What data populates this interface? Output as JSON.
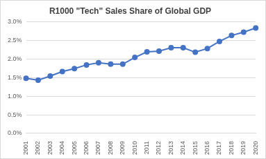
{
  "chart_data": {
    "type": "line",
    "title": "R1000 \"Tech\" Sales Share of Global GDP",
    "categories": [
      "2001",
      "2002",
      "2003",
      "2004",
      "2005",
      "2006",
      "2007",
      "2008",
      "2009",
      "2010",
      "2011",
      "2012",
      "2013",
      "2014",
      "2015",
      "2016",
      "2017",
      "2018",
      "2019",
      "2020"
    ],
    "values": [
      1.48,
      1.43,
      1.54,
      1.66,
      1.74,
      1.84,
      1.9,
      1.86,
      1.86,
      2.04,
      2.19,
      2.21,
      2.3,
      2.3,
      2.18,
      2.28,
      2.47,
      2.63,
      2.72,
      2.83
    ],
    "color": "#4472c4",
    "marker": "circle",
    "line_style": "solid",
    "ylim": [
      0,
      3
    ],
    "yticks": [
      {
        "value": 0,
        "label": "0.0%"
      },
      {
        "value": 0.5,
        "label": "0.5%"
      },
      {
        "value": 1,
        "label": "1.0%"
      },
      {
        "value": 1.5,
        "label": "1.5%"
      },
      {
        "value": 2,
        "label": "2.0%"
      },
      {
        "value": 2.5,
        "label": "2.5%"
      },
      {
        "value": 3,
        "label": "3.0%"
      }
    ],
    "grid": true
  }
}
